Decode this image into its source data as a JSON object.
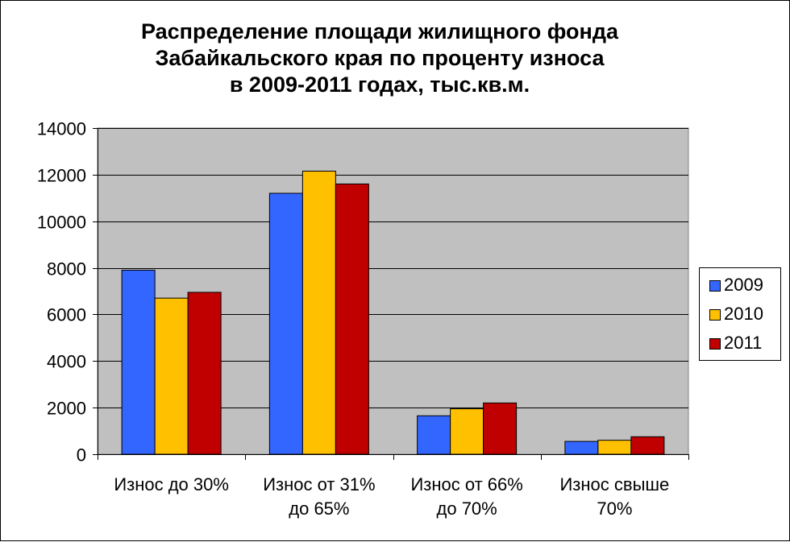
{
  "chart_data": {
    "type": "bar",
    "title_lines": [
      "Распределение площади жилищного фонда",
      "Забайкальского края по проценту износа",
      "в 2009-2011 годах, тыс.кв.м."
    ],
    "categories": [
      [
        "Износ до 30%"
      ],
      [
        "Износ от 31%",
        "до 65%"
      ],
      [
        "Износ от 66%",
        "до 70%"
      ],
      [
        "Износ свыше",
        "70%"
      ]
    ],
    "series": [
      {
        "name": "2009",
        "color": "#3366FF",
        "values": [
          7900,
          11200,
          1650,
          550
        ]
      },
      {
        "name": "2010",
        "color": "#FFC000",
        "values": [
          6700,
          12150,
          1950,
          600
        ]
      },
      {
        "name": "2011",
        "color": "#C00000",
        "values": [
          6950,
          11600,
          2200,
          750
        ]
      }
    ],
    "ylim": [
      0,
      14000
    ],
    "yticks": [
      0,
      2000,
      4000,
      6000,
      8000,
      10000,
      12000,
      14000
    ],
    "grid": true,
    "plot_background": "#C0C0C0",
    "legend_position": "right"
  }
}
